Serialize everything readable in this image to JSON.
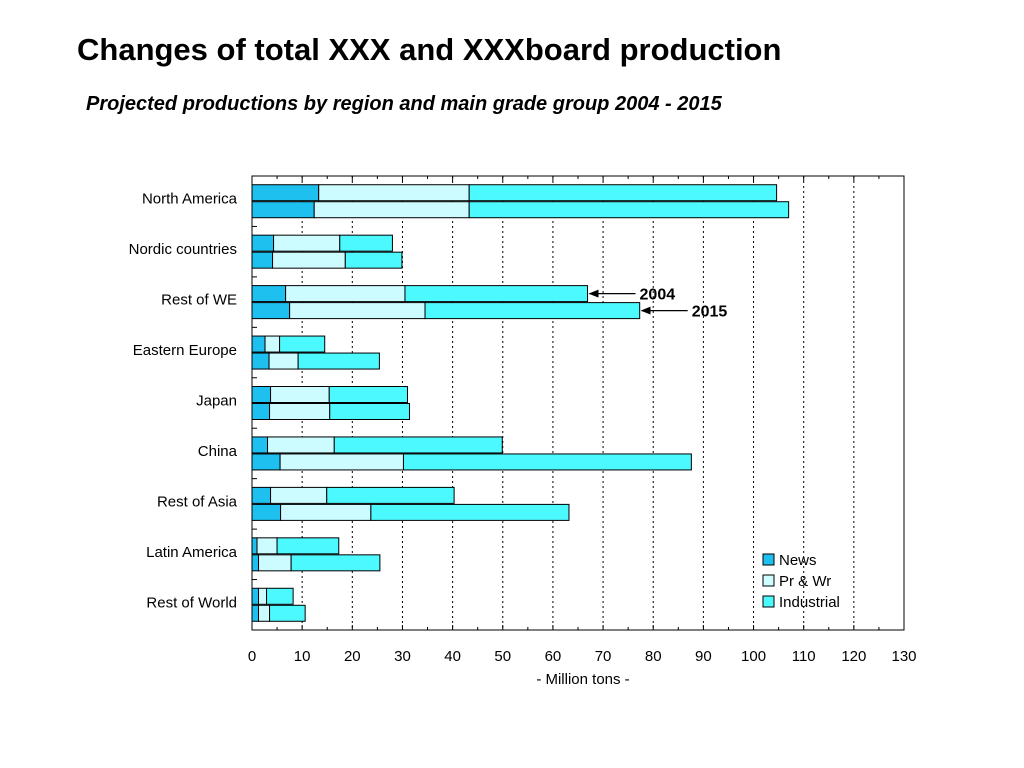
{
  "title": "Changes of total XXX and XXXboard production",
  "subtitle": "Projected productions by region and main grade group 2004 - 2015",
  "chart_data": {
    "type": "bar",
    "orientation": "horizontal",
    "stacked": true,
    "categories": [
      "North America",
      "Nordic countries",
      "Rest of WE",
      "Eastern Europe",
      "Japan",
      "China",
      "Rest of Asia",
      "Latin America",
      "Rest of World"
    ],
    "years": [
      "2004",
      "2015"
    ],
    "series": [
      {
        "name": "News",
        "color": "#1ec0f0",
        "values_2004": [
          13.3,
          4.3,
          6.7,
          2.6,
          3.7,
          3.1,
          3.7,
          1.0,
          1.3
        ],
        "values_2015": [
          12.4,
          4.1,
          7.5,
          3.4,
          3.5,
          5.6,
          5.7,
          1.3,
          1.3
        ]
      },
      {
        "name": "Pr & Wr",
        "color": "#ccfcff",
        "values_2004": [
          30.0,
          13.2,
          23.8,
          2.9,
          11.7,
          13.3,
          11.2,
          4.0,
          1.6
        ],
        "values_2015": [
          30.9,
          14.5,
          27.0,
          5.8,
          12.0,
          24.6,
          18.0,
          6.5,
          2.2
        ]
      },
      {
        "name": "Industrial",
        "color": "#4cf9ff",
        "values_2004": [
          61.3,
          10.5,
          36.4,
          9.0,
          15.6,
          33.5,
          25.4,
          12.3,
          5.3
        ],
        "values_2015": [
          63.7,
          11.3,
          42.8,
          16.2,
          15.9,
          57.4,
          39.5,
          17.7,
          7.1
        ]
      }
    ],
    "xlabel": "- Million tons -",
    "ylabel": "",
    "xlim": [
      0,
      130
    ],
    "xticks": [
      0,
      10,
      20,
      30,
      40,
      50,
      60,
      70,
      80,
      90,
      100,
      110,
      120,
      130
    ],
    "grid": "vertical dotted",
    "legend_position": "bottom-right",
    "annotations": [
      {
        "text": "2004",
        "category": "Rest of WE",
        "bar": "2004"
      },
      {
        "text": "2015",
        "category": "Rest of WE",
        "bar": "2015"
      }
    ]
  }
}
